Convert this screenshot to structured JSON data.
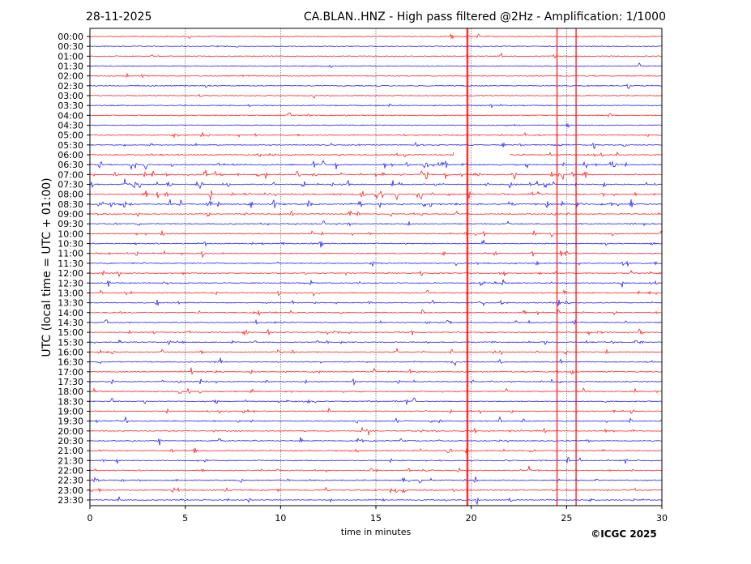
{
  "chart_data": {
    "type": "line",
    "date": "28-11-2025",
    "title": "CA.BLAN..HNZ - High pass filtered @2Hz - Amplification: 1/1000",
    "xlabel": "time in minutes",
    "ylabel": "UTC (local time = UTC + 01:00)",
    "xlim": [
      0,
      30
    ],
    "xticks": [
      "0",
      "5",
      "10",
      "15",
      "20",
      "25",
      "30"
    ],
    "xgrid": "dotted vertical at 5-minute intervals",
    "row_labels": [
      "00:00",
      "00:30",
      "01:00",
      "01:30",
      "02:00",
      "02:30",
      "03:00",
      "03:30",
      "04:00",
      "04:30",
      "05:00",
      "05:30",
      "06:00",
      "06:30",
      "07:00",
      "07:30",
      "08:00",
      "08:30",
      "09:00",
      "09:30",
      "10:00",
      "10:30",
      "11:00",
      "11:30",
      "12:00",
      "12:30",
      "13:00",
      "13:30",
      "14:00",
      "14:30",
      "15:00",
      "15:30",
      "16:00",
      "16:30",
      "17:00",
      "17:30",
      "18:00",
      "18:30",
      "19:00",
      "19:30",
      "20:00",
      "20:30",
      "21:00",
      "21:30",
      "22:00",
      "22:30",
      "23:00",
      "23:30"
    ],
    "series_colors": [
      "#ff0000",
      "#0000ff"
    ],
    "large_events_minutes": [
      19.8,
      24.5,
      25.5
    ],
    "data_gap": {
      "row": "06:00",
      "from_minute": 19.1,
      "to_minute": 22.0
    },
    "busy_period_rows": [
      "06:30",
      "07:00",
      "07:30",
      "08:00",
      "08:30"
    ]
  },
  "footer": {
    "copyright": "©ICGC 2025"
  }
}
